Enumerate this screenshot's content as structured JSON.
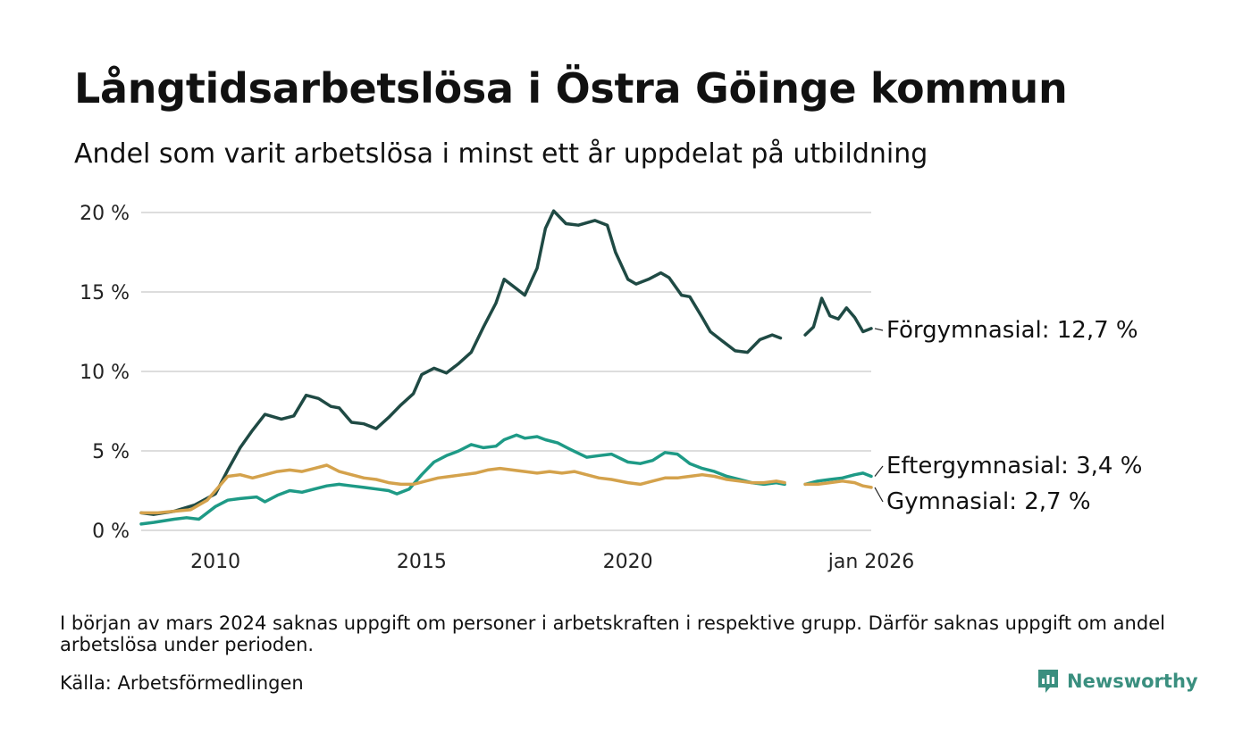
{
  "title": "Långtidsarbetslösa i Östra Göinge kommun",
  "subtitle": "Andel som varit arbetslösa i minst ett år uppdelat på utbildning",
  "note": "I början av mars 2024 saknas uppgift om personer i arbetskraften i respektive grupp. Därför saknas uppgift om andel arbetslösa under perioden.",
  "source": "Källa: Arbetsförmedlingen",
  "brand": "Newsworthy",
  "colors": {
    "forgymnasial": "#1f4a44",
    "eftergymnasial": "#1e9a86",
    "gymnasial": "#d4a24c",
    "grid": "#dddddd",
    "brand": "#3a8f7f"
  },
  "chart_data": {
    "type": "line",
    "title": "Långtidsarbetslösa i Östra Göinge kommun",
    "xlabel": "",
    "ylabel": "",
    "xlim": [
      2008.2,
      2025.9
    ],
    "ylim": [
      0,
      20
    ],
    "yticks": [
      {
        "value": 0,
        "label": "0 %"
      },
      {
        "value": 5,
        "label": "5 %"
      },
      {
        "value": 10,
        "label": "10 %"
      },
      {
        "value": 15,
        "label": "15 %"
      },
      {
        "value": 20,
        "label": "20 %"
      }
    ],
    "xticks": [
      {
        "value": 2010.0,
        "label": "2010"
      },
      {
        "value": 2015.0,
        "label": "2015"
      },
      {
        "value": 2020.0,
        "label": "2020"
      },
      {
        "value": 2025.9,
        "label": "jan 2026"
      }
    ],
    "gap": [
      2023.8,
      2024.3
    ],
    "series": [
      {
        "name": "Förgymnasial",
        "label": "Förgymnasial: 12,7 %",
        "color_key": "forgymnasial",
        "x": [
          2008.2,
          2008.5,
          2009.0,
          2009.5,
          2010.0,
          2010.3,
          2010.6,
          2010.9,
          2011.2,
          2011.6,
          2011.9,
          2012.2,
          2012.5,
          2012.8,
          2013.0,
          2013.3,
          2013.6,
          2013.9,
          2014.2,
          2014.5,
          2014.8,
          2015.0,
          2015.3,
          2015.6,
          2015.9,
          2016.2,
          2016.5,
          2016.8,
          2017.0,
          2017.3,
          2017.5,
          2017.8,
          2018.0,
          2018.2,
          2018.5,
          2018.8,
          2019.2,
          2019.5,
          2019.7,
          2020.0,
          2020.2,
          2020.5,
          2020.8,
          2021.0,
          2021.3,
          2021.5,
          2021.8,
          2022.0,
          2022.3,
          2022.6,
          2022.9,
          2023.2,
          2023.5,
          2023.7,
          2024.3,
          2024.5,
          2024.7,
          2024.9,
          2025.1,
          2025.3,
          2025.5,
          2025.7,
          2025.9
        ],
        "y": [
          1.1,
          1.0,
          1.2,
          1.6,
          2.3,
          3.8,
          5.2,
          6.3,
          7.3,
          7.0,
          7.2,
          8.5,
          8.3,
          7.8,
          7.7,
          6.8,
          6.7,
          6.4,
          7.1,
          7.9,
          8.6,
          9.8,
          10.2,
          9.9,
          10.5,
          11.2,
          12.8,
          14.3,
          15.8,
          15.2,
          14.8,
          16.5,
          19.0,
          20.1,
          19.3,
          19.2,
          19.5,
          19.2,
          17.5,
          15.8,
          15.5,
          15.8,
          16.2,
          15.9,
          14.8,
          14.7,
          13.4,
          12.5,
          11.9,
          11.3,
          11.2,
          12.0,
          12.3,
          12.1,
          12.3,
          12.8,
          14.6,
          13.5,
          13.3,
          14.0,
          13.4,
          12.5,
          12.7
        ]
      },
      {
        "name": "Eftergymnasial",
        "label": "Eftergymnasial:  3,4 %",
        "color_key": "eftergymnasial",
        "x": [
          2008.2,
          2008.5,
          2009.0,
          2009.3,
          2009.6,
          2010.0,
          2010.3,
          2010.6,
          2011.0,
          2011.2,
          2011.5,
          2011.8,
          2012.1,
          2012.4,
          2012.7,
          2013.0,
          2013.3,
          2013.6,
          2013.9,
          2014.2,
          2014.4,
          2014.7,
          2015.0,
          2015.3,
          2015.6,
          2015.9,
          2016.2,
          2016.5,
          2016.8,
          2017.0,
          2017.3,
          2017.5,
          2017.8,
          2018.0,
          2018.3,
          2018.6,
          2019.0,
          2019.3,
          2019.6,
          2020.0,
          2020.3,
          2020.6,
          2020.9,
          2021.2,
          2021.5,
          2021.8,
          2022.1,
          2022.4,
          2022.7,
          2023.0,
          2023.3,
          2023.6,
          2023.8,
          2024.3,
          2024.6,
          2024.9,
          2025.2,
          2025.5,
          2025.7,
          2025.9
        ],
        "y": [
          0.4,
          0.5,
          0.7,
          0.8,
          0.7,
          1.5,
          1.9,
          2.0,
          2.1,
          1.8,
          2.2,
          2.5,
          2.4,
          2.6,
          2.8,
          2.9,
          2.8,
          2.7,
          2.6,
          2.5,
          2.3,
          2.6,
          3.5,
          4.3,
          4.7,
          5.0,
          5.4,
          5.2,
          5.3,
          5.7,
          6.0,
          5.8,
          5.9,
          5.7,
          5.5,
          5.1,
          4.6,
          4.7,
          4.8,
          4.3,
          4.2,
          4.4,
          4.9,
          4.8,
          4.2,
          3.9,
          3.7,
          3.4,
          3.2,
          3.0,
          2.9,
          3.0,
          2.9,
          2.9,
          3.1,
          3.2,
          3.3,
          3.5,
          3.6,
          3.4
        ]
      },
      {
        "name": "Gymnasial",
        "label": "Gymnasial:  2,7 %",
        "color_key": "gymnasial",
        "x": [
          2008.2,
          2008.6,
          2009.0,
          2009.4,
          2009.8,
          2010.0,
          2010.3,
          2010.6,
          2010.9,
          2011.2,
          2011.5,
          2011.8,
          2012.1,
          2012.4,
          2012.7,
          2013.0,
          2013.3,
          2013.6,
          2013.9,
          2014.2,
          2014.5,
          2014.8,
          2015.1,
          2015.4,
          2015.7,
          2016.0,
          2016.3,
          2016.6,
          2016.9,
          2017.2,
          2017.5,
          2017.8,
          2018.1,
          2018.4,
          2018.7,
          2019.0,
          2019.3,
          2019.6,
          2020.0,
          2020.3,
          2020.6,
          2020.9,
          2021.2,
          2021.5,
          2021.8,
          2022.1,
          2022.4,
          2022.7,
          2023.0,
          2023.3,
          2023.6,
          2023.8,
          2024.3,
          2024.6,
          2024.9,
          2025.2,
          2025.5,
          2025.7,
          2025.9
        ],
        "y": [
          1.1,
          1.1,
          1.2,
          1.3,
          1.9,
          2.5,
          3.4,
          3.5,
          3.3,
          3.5,
          3.7,
          3.8,
          3.7,
          3.9,
          4.1,
          3.7,
          3.5,
          3.3,
          3.2,
          3.0,
          2.9,
          2.9,
          3.1,
          3.3,
          3.4,
          3.5,
          3.6,
          3.8,
          3.9,
          3.8,
          3.7,
          3.6,
          3.7,
          3.6,
          3.7,
          3.5,
          3.3,
          3.2,
          3.0,
          2.9,
          3.1,
          3.3,
          3.3,
          3.4,
          3.5,
          3.4,
          3.2,
          3.1,
          3.0,
          3.0,
          3.1,
          3.0,
          2.9,
          2.9,
          3.0,
          3.1,
          3.0,
          2.8,
          2.7
        ]
      }
    ]
  }
}
